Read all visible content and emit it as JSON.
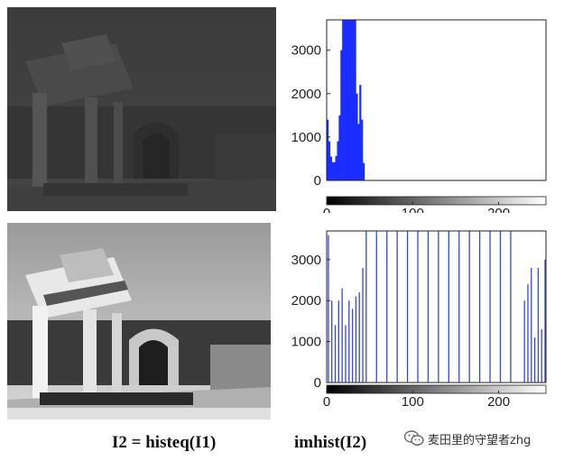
{
  "captions": {
    "left": "I2 = histeq(I1)",
    "right": "imhist(I2)"
  },
  "watermark": {
    "text": "麦田里的守望者zhg",
    "icon": "wechat-icon"
  },
  "images": {
    "original": {
      "description_icon": "ruins-columns-photo",
      "tone": "dark-low-contrast"
    },
    "equalized": {
      "description_icon": "ruins-columns-photo",
      "tone": "high-contrast"
    }
  },
  "colors": {
    "hist_fill": "#1a2cff",
    "stem": "#3344ee",
    "axis": "#222222"
  },
  "chart_data": [
    {
      "type": "bar",
      "id": "hist1",
      "title": "",
      "xlabel": "",
      "ylabel": "",
      "xlim": [
        0,
        255
      ],
      "ylim": [
        0,
        3700
      ],
      "xticks": [
        0,
        100,
        200
      ],
      "yticks": [
        0,
        1000,
        2000,
        3000
      ],
      "x": [
        0,
        2,
        4,
        6,
        8,
        10,
        12,
        14,
        16,
        18,
        20,
        22,
        24,
        26,
        28,
        30,
        32,
        34,
        36,
        38,
        40,
        42
      ],
      "values": [
        1400,
        900,
        550,
        420,
        420,
        560,
        900,
        1500,
        3000,
        3700,
        3700,
        3700,
        3700,
        3700,
        3700,
        3700,
        3700,
        2000,
        1300,
        2200,
        1400,
        400
      ]
    },
    {
      "type": "bar",
      "id": "hist2",
      "title": "",
      "xlabel": "",
      "ylabel": "",
      "xlim": [
        0,
        255
      ],
      "ylim": [
        0,
        3700
      ],
      "xticks": [
        0,
        100,
        200
      ],
      "yticks": [
        0,
        1000,
        2000,
        3000
      ],
      "x": [
        2,
        6,
        10,
        14,
        18,
        22,
        26,
        30,
        34,
        38,
        42,
        46,
        58,
        70,
        82,
        94,
        106,
        118,
        130,
        142,
        154,
        166,
        178,
        190,
        202,
        214,
        230,
        234,
        238,
        242,
        246,
        250,
        254
      ],
      "values": [
        3600,
        2000,
        1400,
        2000,
        2300,
        1400,
        2000,
        1800,
        2100,
        2200,
        2800,
        3700,
        3700,
        3700,
        3700,
        3700,
        3700,
        3700,
        3700,
        3700,
        3700,
        3700,
        3700,
        3700,
        3700,
        3700,
        2000,
        2400,
        2800,
        1100,
        2800,
        1300,
        3000
      ]
    }
  ]
}
